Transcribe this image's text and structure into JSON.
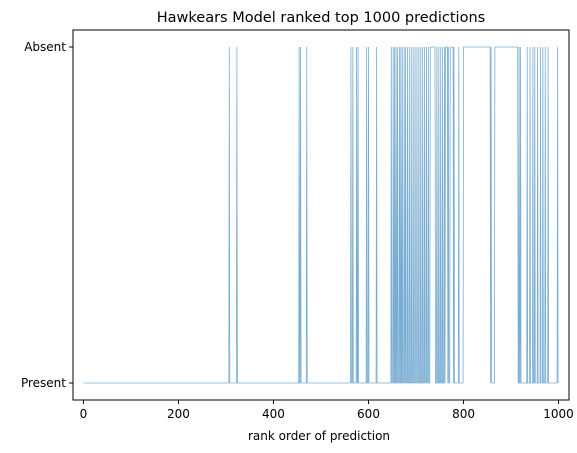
{
  "chart_data": {
    "type": "line",
    "title": "Hawkears Model ranked top 1000 predictions",
    "xlabel": "rank order of prediction",
    "ylabel": "",
    "xlim": [
      -22,
      1022
    ],
    "x_ticks": [
      0,
      200,
      400,
      600,
      800,
      1000
    ],
    "y_categories": [
      "Present",
      "Absent"
    ],
    "grid": false,
    "series": [
      {
        "color": "#1f77b4",
        "absent_ranks": [
          307,
          323,
          454,
          457,
          470,
          563,
          567,
          575,
          578,
          596,
          600,
          617,
          648,
          652,
          655,
          658,
          661,
          665,
          668,
          671,
          675,
          678,
          682,
          686,
          690,
          694,
          698,
          702,
          706,
          710,
          714,
          718,
          722,
          726,
          730,
          733,
          736,
          740,
          744,
          748,
          752,
          756,
          760,
          768,
          780,
          790,
          800,
          820,
          858,
          880,
          900,
          908,
          917,
          920,
          934,
          940,
          946,
          950,
          956,
          962,
          967,
          972,
          978,
          998
        ],
        "absent_runs": [
          [
            731,
            739
          ],
          [
            762,
            766
          ],
          [
            772,
            778
          ],
          [
            800,
            856
          ],
          [
            866,
            914
          ]
        ]
      }
    ]
  }
}
